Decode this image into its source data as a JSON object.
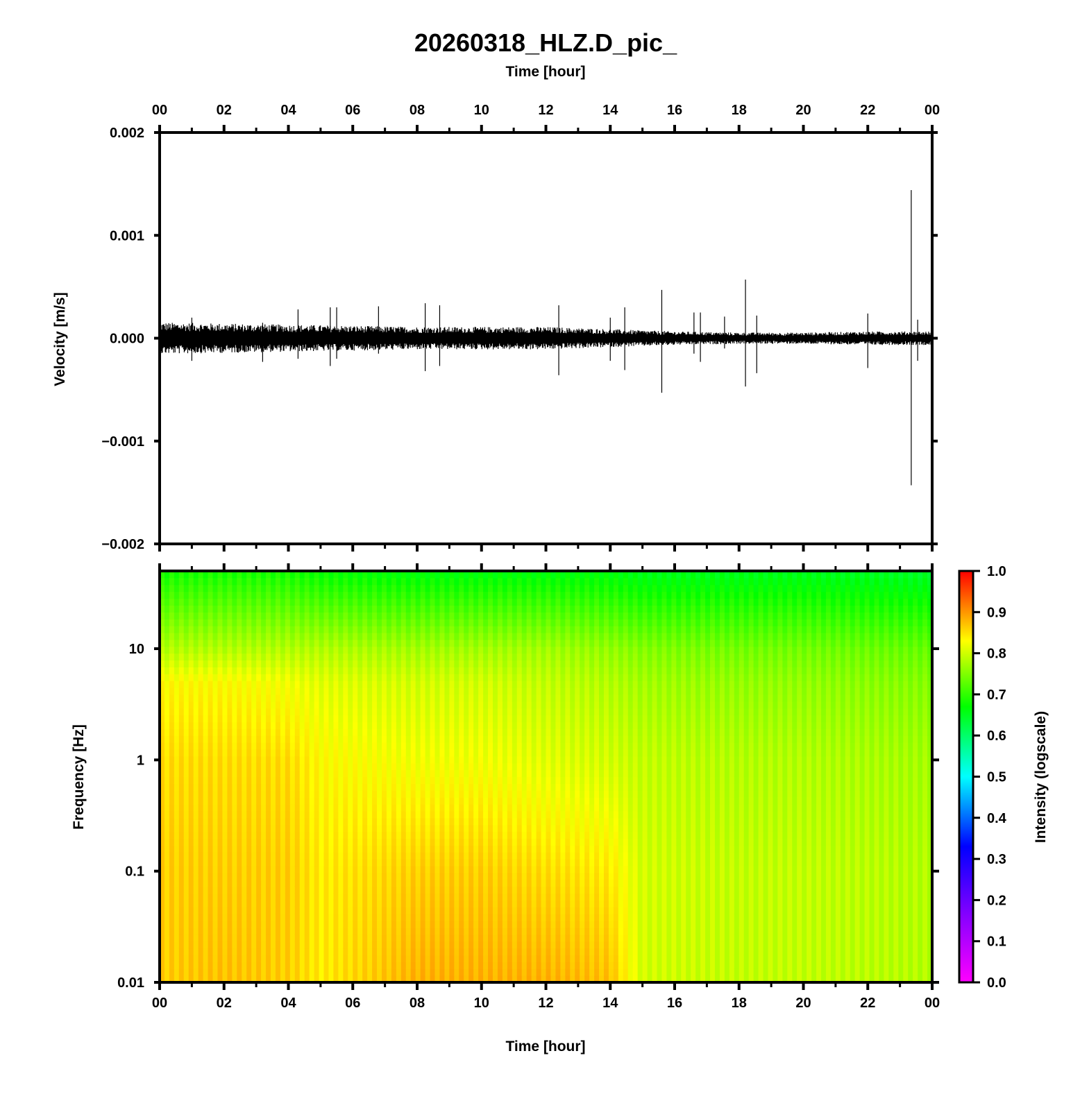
{
  "title": "20260318_HLZ.D_pic_",
  "chart_data": [
    {
      "type": "line",
      "panel": "waveform",
      "title": "20260318_HLZ.D_pic_",
      "xlabel": "Time [hour]",
      "ylabel": "Velocity [m/s]",
      "xlim": [
        0,
        24
      ],
      "ylim": [
        -0.002,
        0.002
      ],
      "x_ticks": [
        "00",
        "02",
        "04",
        "06",
        "08",
        "10",
        "12",
        "14",
        "16",
        "18",
        "20",
        "22",
        "00"
      ],
      "y_ticks": [
        "0.002",
        "0.001",
        "0.000",
        "−0.001",
        "−0.002"
      ],
      "x_axis_position": "top",
      "grid": false,
      "series": [
        {
          "color": "#000000",
          "noise_envelope": [
            {
              "x": 0,
              "amp": 0.00014
            },
            {
              "x": 4,
              "amp": 0.00012
            },
            {
              "x": 8,
              "amp": 0.0001
            },
            {
              "x": 12,
              "amp": 0.0001
            },
            {
              "x": 14,
              "amp": 8e-05
            },
            {
              "x": 16,
              "amp": 6e-05
            },
            {
              "x": 18,
              "amp": 5e-05
            },
            {
              "x": 20,
              "amp": 5e-05
            },
            {
              "x": 22,
              "amp": 6e-05
            },
            {
              "x": 24,
              "amp": 6e-05
            }
          ],
          "spikes": [
            {
              "x": 1.0,
              "max": 0.0002,
              "min": -0.00022
            },
            {
              "x": 3.2,
              "max": 0.00015,
              "min": -0.00023
            },
            {
              "x": 4.3,
              "max": 0.00028,
              "min": -0.0002
            },
            {
              "x": 5.3,
              "max": 0.0003,
              "min": -0.00027
            },
            {
              "x": 5.5,
              "max": 0.0003,
              "min": -0.0002
            },
            {
              "x": 6.8,
              "max": 0.00031,
              "min": -0.00015
            },
            {
              "x": 8.25,
              "max": 0.00034,
              "min": -0.00032
            },
            {
              "x": 8.7,
              "max": 0.00032,
              "min": -0.00027
            },
            {
              "x": 12.4,
              "max": 0.00032,
              "min": -0.00036
            },
            {
              "x": 14.0,
              "max": 0.0002,
              "min": -0.00022
            },
            {
              "x": 14.45,
              "max": 0.0003,
              "min": -0.00031
            },
            {
              "x": 15.6,
              "max": 0.00047,
              "min": -0.00053
            },
            {
              "x": 16.6,
              "max": 0.00025,
              "min": -0.00015
            },
            {
              "x": 16.8,
              "max": 0.00025,
              "min": -0.00023
            },
            {
              "x": 17.55,
              "max": 0.00021,
              "min": -0.0001
            },
            {
              "x": 18.2,
              "max": 0.00057,
              "min": -0.00047
            },
            {
              "x": 18.55,
              "max": 0.00022,
              "min": -0.00034
            },
            {
              "x": 22.0,
              "max": 0.00024,
              "min": -0.00029
            },
            {
              "x": 23.35,
              "max": 0.00144,
              "min": -0.00143
            },
            {
              "x": 23.55,
              "max": 0.00018,
              "min": -0.00022
            }
          ]
        }
      ]
    },
    {
      "type": "heatmap",
      "panel": "spectrogram",
      "xlabel": "Time [hour]",
      "ylabel": "Frequency [Hz]",
      "xlim": [
        0,
        24
      ],
      "ylim": [
        0.01,
        50
      ],
      "y_scale": "log",
      "x_ticks": [
        "00",
        "02",
        "04",
        "06",
        "08",
        "10",
        "12",
        "14",
        "16",
        "18",
        "20",
        "22",
        "00"
      ],
      "y_ticks": [
        "10",
        "1",
        "0.1",
        "0.01"
      ],
      "grid": false,
      "intensity_grid": {
        "times": [
          0,
          2,
          4,
          5,
          8,
          10,
          12,
          14,
          15,
          18,
          20,
          24
        ],
        "log10_freqs": [
          -2,
          -1,
          0,
          0.7,
          1,
          1.7
        ],
        "values": [
          [
            0.86,
            0.86,
            0.85,
            0.83,
            0.78,
            0.68
          ],
          [
            0.87,
            0.86,
            0.85,
            0.83,
            0.78,
            0.68
          ],
          [
            0.86,
            0.86,
            0.85,
            0.82,
            0.78,
            0.68
          ],
          [
            0.84,
            0.84,
            0.83,
            0.81,
            0.78,
            0.67
          ],
          [
            0.88,
            0.86,
            0.82,
            0.8,
            0.77,
            0.66
          ],
          [
            0.88,
            0.86,
            0.82,
            0.8,
            0.77,
            0.66
          ],
          [
            0.88,
            0.85,
            0.81,
            0.79,
            0.77,
            0.66
          ],
          [
            0.87,
            0.84,
            0.8,
            0.78,
            0.76,
            0.66
          ],
          [
            0.8,
            0.8,
            0.79,
            0.77,
            0.75,
            0.65
          ],
          [
            0.79,
            0.79,
            0.78,
            0.76,
            0.74,
            0.65
          ],
          [
            0.79,
            0.79,
            0.78,
            0.76,
            0.74,
            0.65
          ],
          [
            0.78,
            0.78,
            0.77,
            0.75,
            0.73,
            0.64
          ]
        ]
      },
      "colorbar": {
        "label": "Intensity (logscale)",
        "range": [
          0.0,
          1.0
        ],
        "ticks": [
          "1.0",
          "0.9",
          "0.8",
          "0.7",
          "0.6",
          "0.5",
          "0.4",
          "0.3",
          "0.2",
          "0.1",
          "0.0"
        ],
        "colors": [
          {
            "v": 0.0,
            "c": "#ff00ff"
          },
          {
            "v": 0.17,
            "c": "#8000ff"
          },
          {
            "v": 0.33,
            "c": "#0000ff"
          },
          {
            "v": 0.5,
            "c": "#00ffff"
          },
          {
            "v": 0.67,
            "c": "#00ff00"
          },
          {
            "v": 0.83,
            "c": "#ffff00"
          },
          {
            "v": 1.0,
            "c": "#ff0000"
          }
        ]
      }
    }
  ]
}
